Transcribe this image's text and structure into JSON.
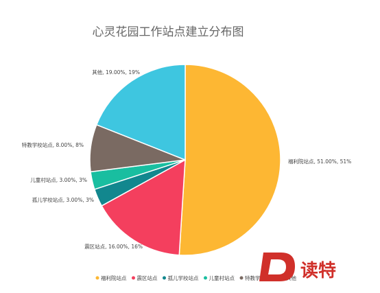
{
  "chart_data": {
    "type": "pie",
    "title": "心灵花园工作站点建立分布图",
    "slices": [
      {
        "name": "福利院站点",
        "value": 51,
        "label": "福利院站点, 51.00%, 51%",
        "color": "#FDB733"
      },
      {
        "name": "震区站点",
        "value": 16,
        "label": "震区站点, 16.00%, 16%",
        "color": "#F43F5E"
      },
      {
        "name": "孤儿学校站点",
        "value": 3,
        "label": "孤儿学校站点, 3.00%, 3%",
        "color": "#12878E"
      },
      {
        "name": "儿童村站点",
        "value": 3,
        "label": "儿童村站点, 3.00%, 3%",
        "color": "#19BEA0"
      },
      {
        "name": "特教学校站点",
        "value": 8,
        "label": "特教学校站点, 8.00%, 8%",
        "color": "#7A6A62"
      },
      {
        "name": "其他",
        "value": 19,
        "label": "其他, 19.00%, 19%",
        "color": "#3EC6E0"
      }
    ],
    "legend": "bottom"
  },
  "watermark": {
    "text": "读特",
    "letter": "D"
  }
}
